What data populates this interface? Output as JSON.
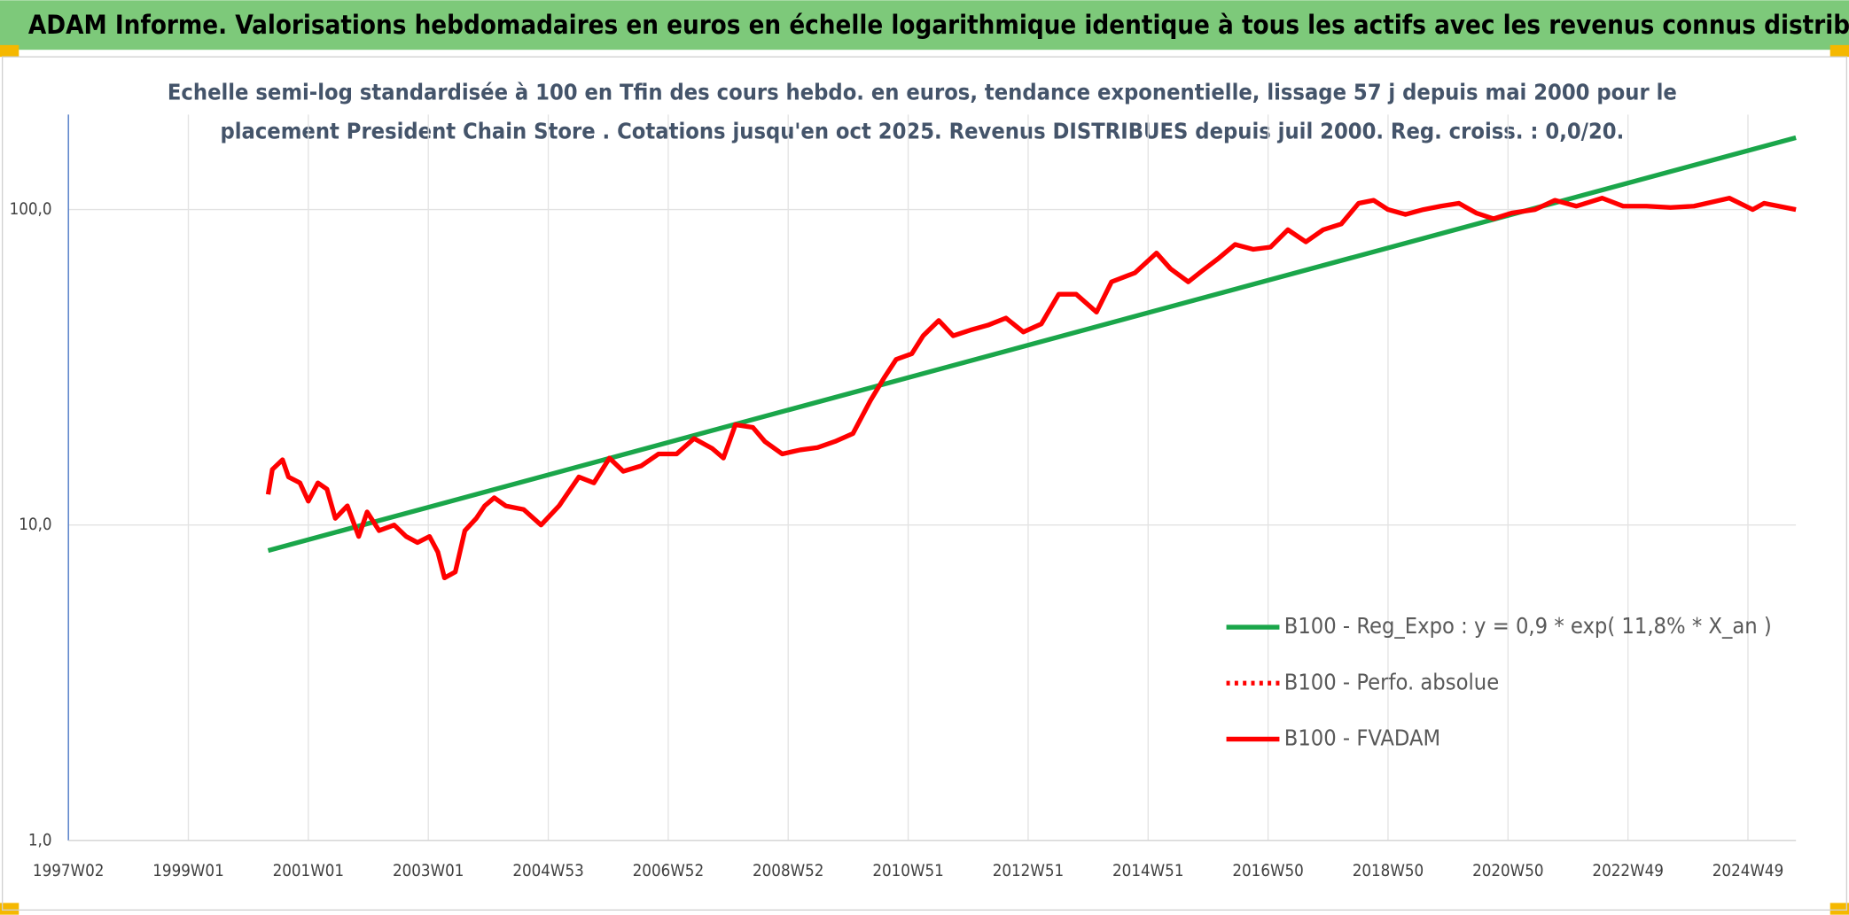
{
  "header": {
    "title": "ADAM Informe. Valorisations hebdomadaires en euros en échelle logarithmique identique à tous les actifs avec les revenus connus distribués"
  },
  "chart_data": {
    "type": "line",
    "title": [
      "Echelle semi-log standardisée à 100 en Tfin des cours hebdo. en euros, tendance exponentielle, lissage 57 j depuis mai 2000 pour le",
      "placement President Chain Store . Cotations jusqu'en oct 2025. Revenus DISTRIBUES depuis juil 2000. Reg. croiss. : 0,0/20."
    ],
    "log_y": true,
    "grid": true,
    "legend": "right",
    "xlim": [
      1997.0,
      2025.8
    ],
    "xticks": [
      {
        "value": 1997.0,
        "label": "1997W02"
      },
      {
        "value": 1999.0,
        "label": "1999W01"
      },
      {
        "value": 2001.0,
        "label": "2001W01"
      },
      {
        "value": 2003.0,
        "label": "2003W01"
      },
      {
        "value": 2005.0,
        "label": "2004W53"
      },
      {
        "value": 2007.0,
        "label": "2006W52"
      },
      {
        "value": 2009.0,
        "label": "2008W52"
      },
      {
        "value": 2011.0,
        "label": "2010W51"
      },
      {
        "value": 2013.0,
        "label": "2012W51"
      },
      {
        "value": 2015.0,
        "label": "2014W51"
      },
      {
        "value": 2017.0,
        "label": "2016W50"
      },
      {
        "value": 2019.0,
        "label": "2018W50"
      },
      {
        "value": 2021.0,
        "label": "2020W50"
      },
      {
        "value": 2023.0,
        "label": "2022W49"
      },
      {
        "value": 2025.0,
        "label": "2024W49"
      }
    ],
    "ylim": [
      1,
      200
    ],
    "yticks": [
      {
        "value": 1,
        "label": "1,0"
      },
      {
        "value": 10,
        "label": "10,0"
      },
      {
        "value": 100,
        "label": "100,0"
      }
    ],
    "series": [
      {
        "name": "B100 - Reg_Expo : y = 0,9 * exp( 11,8% *  X_an )",
        "color": "#1aa64a",
        "style": "solid",
        "x": [
          2000.33,
          2025.8
        ],
        "values": [
          8.3,
          169
        ]
      },
      {
        "name": "B100 - Perfo. absolue",
        "color": "#ff0000",
        "style": "dotted",
        "x": [],
        "values": []
      },
      {
        "name": "B100 - FVADAM",
        "color": "#ff0000",
        "style": "solid",
        "x": [
          2000.33,
          2000.4,
          2000.57,
          2000.67,
          2000.86,
          2001.0,
          2001.16,
          2001.31,
          2001.45,
          2001.65,
          2001.84,
          2001.98,
          2002.18,
          2002.43,
          2002.63,
          2002.82,
          2003.02,
          2003.16,
          2003.27,
          2003.45,
          2003.61,
          2003.8,
          2003.94,
          2004.1,
          2004.29,
          2004.59,
          2004.88,
          2005.18,
          2005.51,
          2005.76,
          2006.02,
          2006.25,
          2006.55,
          2006.84,
          2007.14,
          2007.43,
          2007.73,
          2007.92,
          2008.12,
          2008.41,
          2008.61,
          2008.9,
          2009.2,
          2009.49,
          2009.78,
          2010.08,
          2010.37,
          2010.61,
          2010.8,
          2011.06,
          2011.25,
          2011.51,
          2011.75,
          2012.04,
          2012.33,
          2012.63,
          2012.92,
          2013.22,
          2013.51,
          2013.8,
          2014.14,
          2014.39,
          2014.78,
          2015.14,
          2015.37,
          2015.67,
          2015.9,
          2016.16,
          2016.45,
          2016.75,
          2017.04,
          2017.33,
          2017.63,
          2017.92,
          2018.22,
          2018.51,
          2018.76,
          2019.0,
          2019.29,
          2019.59,
          2019.88,
          2020.18,
          2020.47,
          2020.76,
          2021.06,
          2021.45,
          2021.78,
          2022.14,
          2022.57,
          2022.92,
          2023.31,
          2023.71,
          2024.1,
          2024.69,
          2025.08,
          2025.27,
          2025.8
        ],
        "values": [
          12.5,
          15.0,
          16.1,
          14.2,
          13.6,
          11.9,
          13.6,
          13.0,
          10.5,
          11.5,
          9.2,
          11.0,
          9.6,
          10.0,
          9.2,
          8.8,
          9.2,
          8.2,
          6.8,
          7.1,
          9.6,
          10.5,
          11.5,
          12.2,
          11.5,
          11.2,
          10.0,
          11.5,
          14.2,
          13.6,
          16.3,
          14.8,
          15.4,
          16.8,
          16.8,
          18.8,
          17.5,
          16.3,
          20.8,
          20.4,
          18.4,
          16.8,
          17.3,
          17.6,
          18.4,
          19.5,
          24.8,
          29.5,
          33.5,
          34.9,
          39.8,
          44.5,
          39.8,
          41.5,
          43,
          45.3,
          40.9,
          43.4,
          53.9,
          53.9,
          47.3,
          59,
          63,
          72.8,
          65,
          59,
          63.9,
          69.7,
          77.5,
          74.8,
          76,
          86.3,
          79,
          86.3,
          90,
          104.7,
          107,
          100,
          96.5,
          100,
          102.5,
          104.7,
          97.5,
          93.5,
          97.5,
          100,
          107,
          102.5,
          108.7,
          102.5,
          102.5,
          101.5,
          102.5,
          108.7,
          100,
          104.7,
          100
        ]
      }
    ]
  }
}
